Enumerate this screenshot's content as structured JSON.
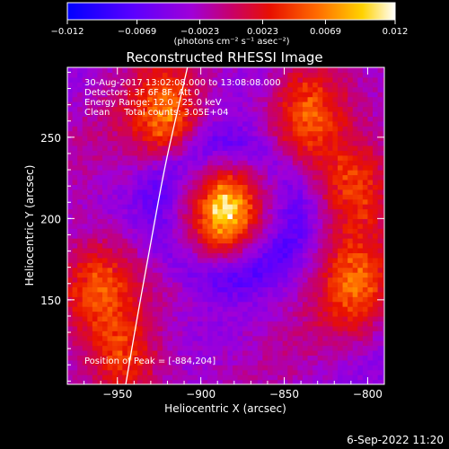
{
  "chart_data": {
    "type": "heatmap",
    "title": "Reconstructed RHESSI Image",
    "xlabel": "Heliocentric X (arcsec)",
    "ylabel": "Heliocentric Y (arcsec)",
    "xlim": [
      -980,
      -790
    ],
    "ylim": [
      98,
      293
    ],
    "x_ticks": [
      {
        "value": -950,
        "label": "−950"
      },
      {
        "value": -900,
        "label": "−900"
      },
      {
        "value": -850,
        "label": "−850"
      },
      {
        "value": -800,
        "label": "−800"
      }
    ],
    "y_ticks": [
      {
        "value": 150,
        "label": "150"
      },
      {
        "value": 200,
        "label": "200"
      },
      {
        "value": 250,
        "label": "250"
      }
    ],
    "colorbar": {
      "range": [
        -0.012,
        0.012
      ],
      "ticks": [
        {
          "value": -0.012,
          "label": "−0.012"
        },
        {
          "value": -0.0069,
          "label": "−0.0069"
        },
        {
          "value": -0.0023,
          "label": "−0.0023"
        },
        {
          "value": 0.0023,
          "label": "0.0023"
        },
        {
          "value": 0.0069,
          "label": "0.0069"
        },
        {
          "value": 0.012,
          "label": "0.012"
        }
      ],
      "units_label": "(photons cm⁻² s⁻¹ asec⁻²)"
    },
    "annotations": {
      "time": "30-Aug-2017 13:02:08.000 to 13:08:08.000",
      "detectors": "Detectors: 3F 6F 8F, Att 0",
      "energy": "Energy Range: 12.0 - 25.0 keV",
      "clean": "Clean     Total counts: 3.05E+04",
      "peak": "Position of Peak = [-884,204]"
    },
    "sources": [
      {
        "x": -885,
        "y": 205,
        "peak": 0.012
      },
      {
        "x": -962,
        "y": 158,
        "peak": 0.0078
      },
      {
        "x": -945,
        "y": 112,
        "peak": 0.0062
      },
      {
        "x": -920,
        "y": 262,
        "peak": 0.0088
      },
      {
        "x": -835,
        "y": 268,
        "peak": 0.0072
      },
      {
        "x": -808,
        "y": 220,
        "peak": 0.0076
      },
      {
        "x": -808,
        "y": 160,
        "peak": 0.0072
      }
    ],
    "limb_curve": [
      {
        "x": -945,
        "y": 98
      },
      {
        "x": -938,
        "y": 140
      },
      {
        "x": -930,
        "y": 185
      },
      {
        "x": -922,
        "y": 230
      },
      {
        "x": -915,
        "y": 262
      },
      {
        "x": -908,
        "y": 293
      }
    ]
  },
  "footer": {
    "timestamp": "6-Sep-2022 11:20"
  }
}
